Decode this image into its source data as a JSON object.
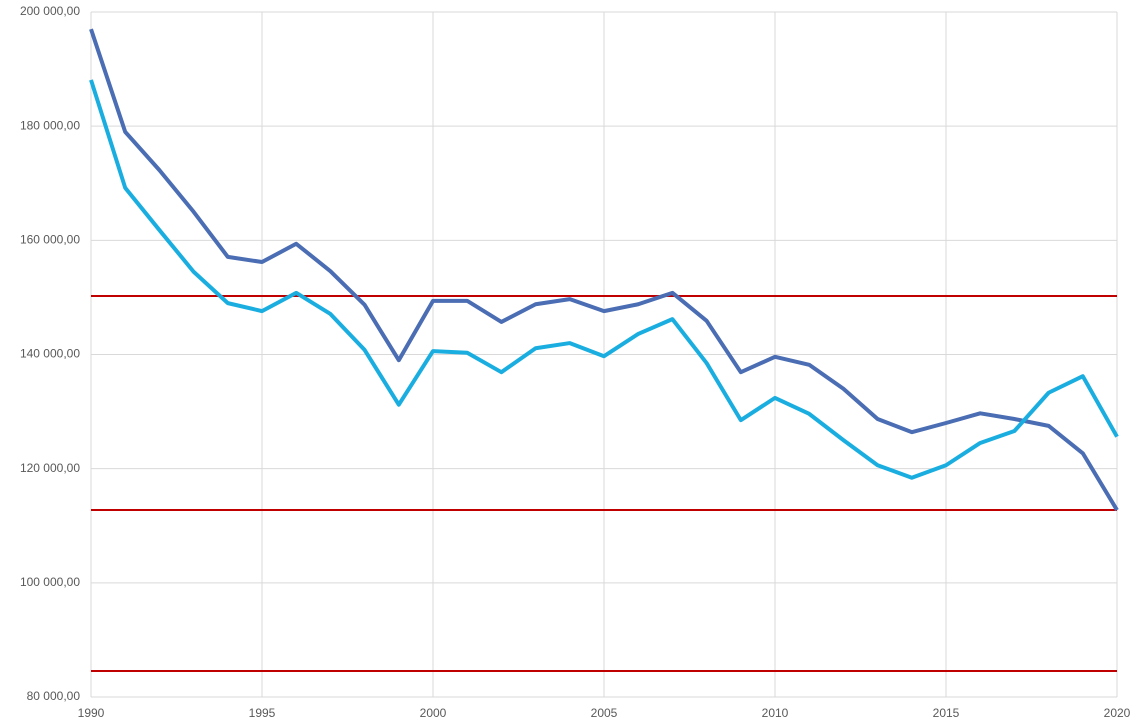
{
  "chart_data": {
    "type": "line",
    "x": [
      1990,
      1991,
      1992,
      1993,
      1994,
      1995,
      1996,
      1997,
      1998,
      1999,
      2000,
      2001,
      2002,
      2003,
      2004,
      2005,
      2006,
      2007,
      2008,
      2009,
      2010,
      2011,
      2012,
      2013,
      2014,
      2015,
      2016,
      2017,
      2018,
      2019,
      2020
    ],
    "series": [
      {
        "color": "#4a6db3",
        "values": [
          197000,
          179000,
          172300,
          165000,
          157100,
          156200,
          159400,
          154600,
          148700,
          139000,
          149400,
          149400,
          145700,
          148800,
          149700,
          147600,
          148800,
          150800,
          145900,
          136900,
          139600,
          138200,
          134000,
          128700,
          126400,
          128000,
          129700,
          128700,
          127500,
          122700,
          112750
        ]
      },
      {
        "color": "#1aaee0",
        "values": [
          188100,
          169200,
          161800,
          154500,
          149000,
          147600,
          150800,
          147100,
          140800,
          131200,
          140600,
          140300,
          136900,
          141100,
          142000,
          139700,
          143600,
          146200,
          138500,
          128500,
          132400,
          129600,
          125000,
          120600,
          118400,
          120600,
          124500,
          126600,
          133300,
          136200,
          125600
        ]
      }
    ],
    "reference_lines": {
      "color": "#c00000",
      "values": [
        150250,
        112750,
        84550
      ]
    },
    "xlim": [
      1990,
      2020
    ],
    "xticks": [
      1990,
      1995,
      2000,
      2005,
      2010,
      2015,
      2020
    ],
    "ylim": [
      80000,
      200000
    ],
    "yticks": [
      {
        "value": 80000,
        "label": "80 000,00"
      },
      {
        "value": 100000,
        "label": "100 000,00"
      },
      {
        "value": 120000,
        "label": "120 000,00"
      },
      {
        "value": 140000,
        "label": "140 000,00"
      },
      {
        "value": 160000,
        "label": "160 000,00"
      },
      {
        "value": 180000,
        "label": "180 000,00"
      },
      {
        "value": 200000,
        "label": "200 000,00"
      }
    ],
    "grid": true
  }
}
